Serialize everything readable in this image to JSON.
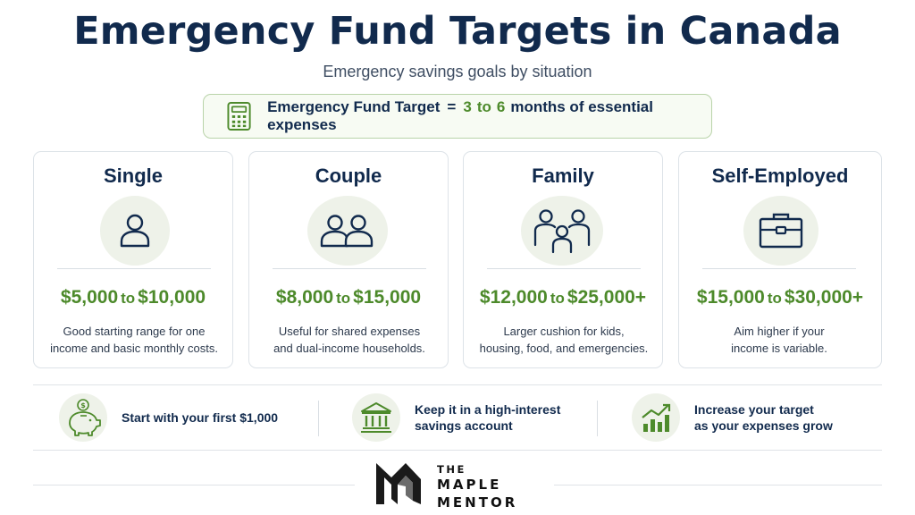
{
  "title": "Emergency Fund Targets in Canada",
  "subtitle": "Emergency savings goals by situation",
  "formula": {
    "icon": "calculator-icon",
    "label": "Emergency Fund Target",
    "equals": "=",
    "from": "3",
    "to_word": "to",
    "upto": "6",
    "rest": "months of essential expenses"
  },
  "cards": [
    {
      "title": "Single",
      "icon": "person-icon",
      "amount_low": "$5,000",
      "to_word": "to",
      "amount_high": "$10,000",
      "desc1": "Good starting range for one",
      "desc2": "income and basic monthly costs."
    },
    {
      "title": "Couple",
      "icon": "two-people-icon",
      "amount_low": "$8,000",
      "to_word": "to",
      "amount_high": "$15,000",
      "desc1": "Useful for shared expenses",
      "desc2": "and dual-income households."
    },
    {
      "title": "Family",
      "icon": "family-icon",
      "amount_low": "$12,000",
      "to_word": "to",
      "amount_high": "$25,000+",
      "desc1": "Larger cushion for kids,",
      "desc2": "housing, food, and emergencies."
    },
    {
      "title": "Self-Employed",
      "icon": "briefcase-icon",
      "amount_low": "$15,000",
      "to_word": "to",
      "amount_high": "$30,000+",
      "desc1": "Aim higher if your",
      "desc2": "income is variable."
    }
  ],
  "tips": [
    {
      "icon": "piggy-bank-icon",
      "line1": "Start with your first $1,000",
      "line2": ""
    },
    {
      "icon": "bank-icon",
      "line1": "Keep it in a high-interest",
      "line2": "savings account"
    },
    {
      "icon": "growth-chart-icon",
      "line1": "Increase your target",
      "line2": "as your expenses grow"
    }
  ],
  "brand": {
    "line1": "THE",
    "line2": "MAPLE",
    "line3": "MENTOR",
    "logo": "maple-mentor-logo"
  },
  "colors": {
    "navy": "#112a4d",
    "green": "#4d8a2b",
    "icon_bg": "#eef2e9"
  }
}
